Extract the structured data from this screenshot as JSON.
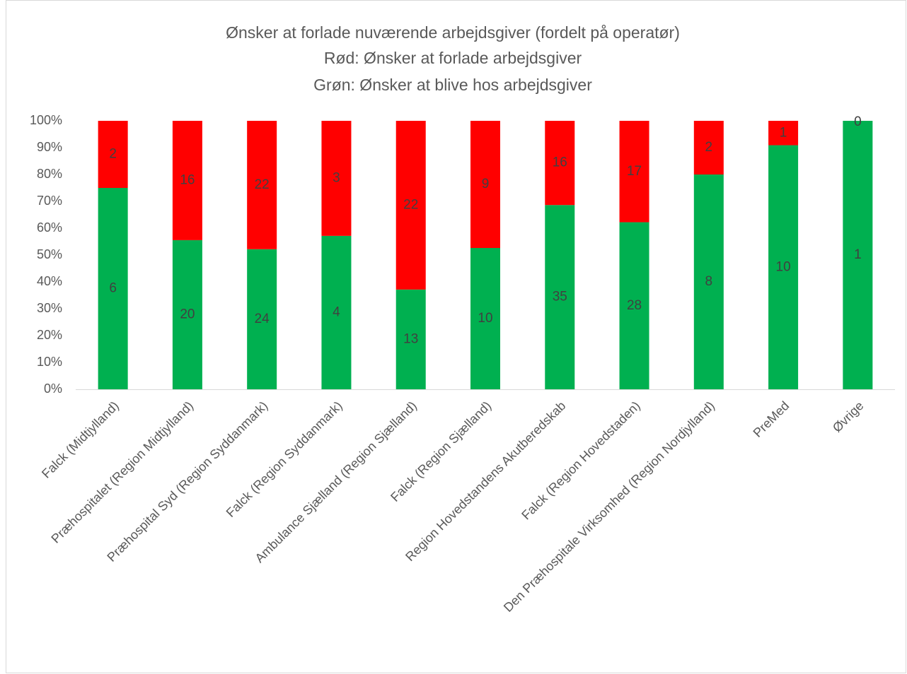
{
  "chart_data": {
    "type": "bar",
    "stacked": "percent",
    "title": "Ønsker at forlade nuværende arbejdsgiver (fordelt på operatør)",
    "subtitle": [
      "Rød: Ønsker at forlade arbejdsgiver",
      "Grøn: Ønsker at blive hos arbejdsgiver"
    ],
    "categories": [
      "Falck (Midtjylland)",
      "Præhospitalet (Region Midtjylland)",
      "Præhospital Syd (Region Syddanmark)",
      "Falck (Region Syddanmark)",
      "Ambulance Sjælland (Region Sjælland)",
      "Falck (Region Sjælland)",
      "Region Hovedstandens Akutberedskab",
      "Falck (Region Hovedstaden)",
      "Den Præhospitale Virksomhed (Region Nordjylland)",
      "PreMed",
      "Øvrige"
    ],
    "series": [
      {
        "color": "#00b050",
        "values": [
          6,
          20,
          24,
          4,
          13,
          10,
          35,
          28,
          8,
          10,
          1
        ]
      },
      {
        "color": "#ff0000",
        "values": [
          2,
          16,
          22,
          3,
          22,
          9,
          16,
          17,
          2,
          1,
          0
        ]
      }
    ],
    "ylim": [
      0,
      100
    ],
    "yticks": [
      {
        "value": 0,
        "label": "0%"
      },
      {
        "value": 10,
        "label": "10%"
      },
      {
        "value": 20,
        "label": "20%"
      },
      {
        "value": 30,
        "label": "30%"
      },
      {
        "value": 40,
        "label": "40%"
      },
      {
        "value": 50,
        "label": "50%"
      },
      {
        "value": 60,
        "label": "60%"
      },
      {
        "value": 70,
        "label": "70%"
      },
      {
        "value": 80,
        "label": "80%"
      },
      {
        "value": 90,
        "label": "90%"
      },
      {
        "value": 100,
        "label": "100%"
      }
    ],
    "grid": false
  }
}
